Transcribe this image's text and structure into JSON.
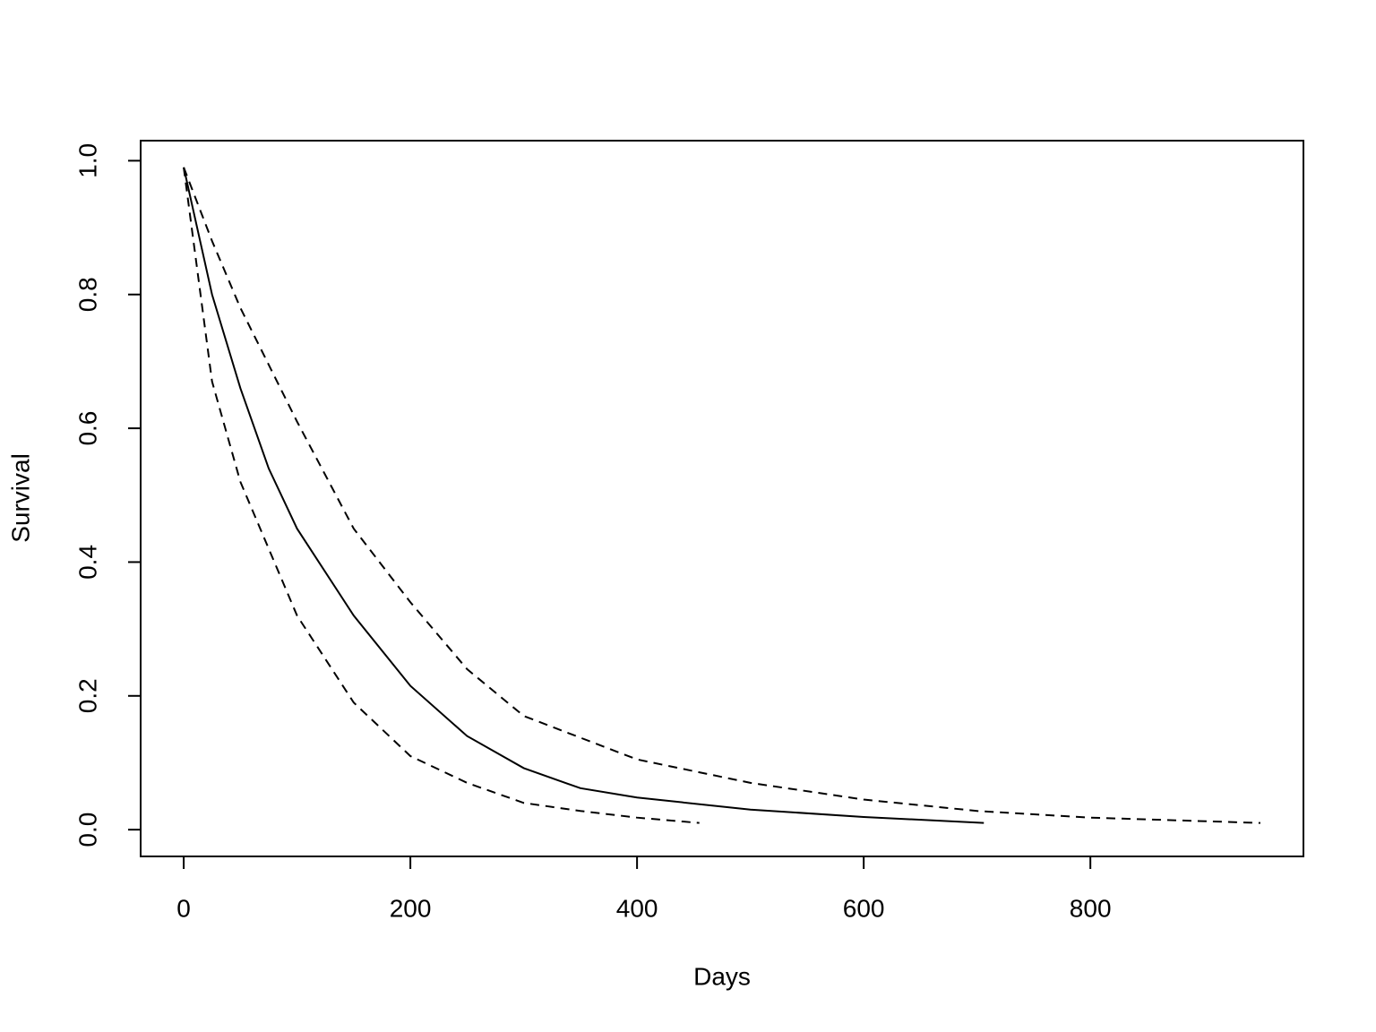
{
  "chart_data": {
    "type": "line",
    "xlabel": "Days",
    "ylabel": "Survival",
    "xlim": [
      -38,
      988
    ],
    "ylim": [
      -0.04,
      1.03
    ],
    "xticks": [
      0,
      200,
      400,
      600,
      800
    ],
    "yticks": [
      {
        "value": 0,
        "label": "0.0"
      },
      0.2,
      0.4,
      0.6,
      0.8,
      {
        "value": 1,
        "label": "1.0"
      }
    ],
    "series": [
      {
        "color": "#000000",
        "dashed": false,
        "x": [
          0,
          25,
          50,
          75,
          100,
          150,
          200,
          250,
          300,
          350,
          400,
          500,
          600,
          706
        ],
        "values": [
          0.99,
          0.8,
          0.66,
          0.54,
          0.45,
          0.32,
          0.215,
          0.14,
          0.092,
          0.062,
          0.048,
          0.03,
          0.019,
          0.01
        ]
      },
      {
        "color": "#000000",
        "dashed": true,
        "x": [
          0,
          25,
          50,
          100,
          150,
          200,
          250,
          300,
          400,
          500,
          600,
          700,
          800,
          950
        ],
        "values": [
          0.99,
          0.88,
          0.78,
          0.61,
          0.45,
          0.34,
          0.24,
          0.17,
          0.105,
          0.07,
          0.045,
          0.028,
          0.018,
          0.01
        ]
      },
      {
        "color": "#000000",
        "dashed": true,
        "x": [
          0,
          25,
          50,
          100,
          150,
          200,
          250,
          300,
          350,
          400,
          455
        ],
        "values": [
          0.99,
          0.67,
          0.52,
          0.32,
          0.19,
          0.11,
          0.07,
          0.04,
          0.028,
          0.018,
          0.01
        ]
      }
    ]
  }
}
